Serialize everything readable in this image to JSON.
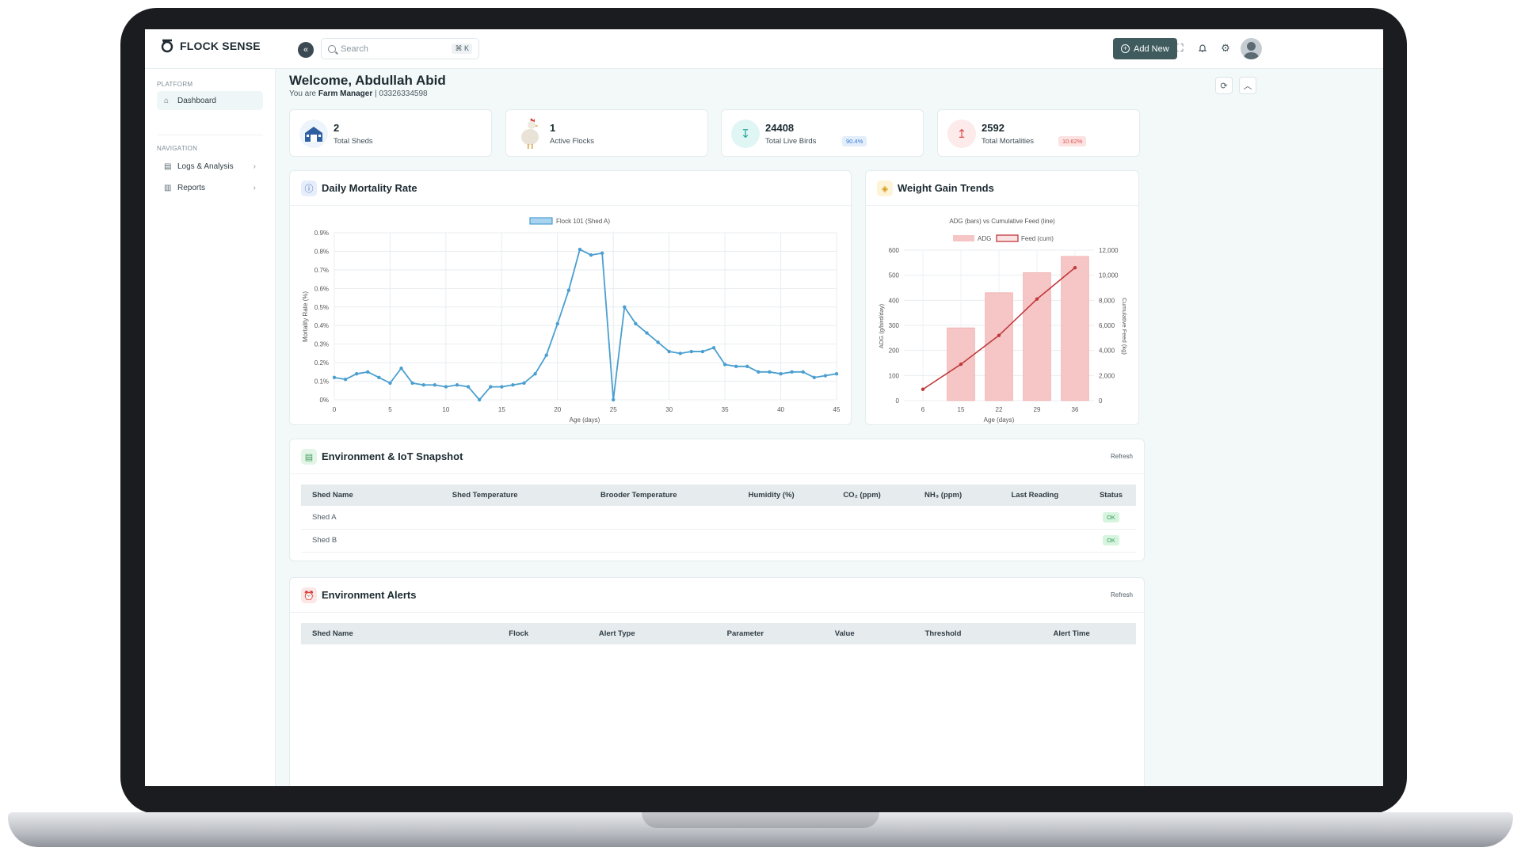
{
  "app": {
    "logo_text": "FLOCK SENSE",
    "brand_color": "#3f5b5e"
  },
  "topbar": {
    "search_placeholder": "Search",
    "shortcut": "⌘ K",
    "add_new": "Add New",
    "icons": [
      "fullscreen-icon",
      "bell-icon",
      "gear-icon",
      "avatar"
    ]
  },
  "sidebar": {
    "platform_label": "PLATFORM",
    "nav_label": "NAVIGATION",
    "items": [
      {
        "label": "Dashboard",
        "icon": "home-icon",
        "active": true
      },
      {
        "label": "Logs & Analysis",
        "icon": "logs-icon",
        "expandable": true
      },
      {
        "label": "Reports",
        "icon": "reports-icon",
        "expandable": true
      }
    ]
  },
  "header": {
    "welcome": "Welcome, Abdullah Abid",
    "role_prefix": "You are",
    "role": "Farm Manager",
    "phone_sep": "| 03326334598"
  },
  "stats": [
    {
      "value": "2",
      "label": "Total Sheds",
      "icon": "barn-icon"
    },
    {
      "value": "1",
      "label": "Active Flocks",
      "icon": "chicken-icon"
    },
    {
      "value": "24408",
      "label": "Total Live Birds",
      "icon": "arrow-down-icon",
      "badge": "90.4%",
      "badge_color": "#3a7bd5"
    },
    {
      "value": "2592",
      "label": "Total Mortalities",
      "icon": "arrow-up-icon",
      "badge": "10.62%",
      "badge_color": "#d9534f"
    }
  ],
  "mortality_card": {
    "title": "Daily Mortality Rate"
  },
  "weight_card": {
    "title": "Weight Gain Trends"
  },
  "chart_data": [
    {
      "type": "line",
      "title": "",
      "xlabel": "Age (days)",
      "ylabel": "Mortality Rate (%)",
      "xlim": [
        0,
        45
      ],
      "ylim": [
        0,
        0.9
      ],
      "xticks": [
        "0",
        "5",
        "10",
        "15",
        "20",
        "25",
        "30",
        "35",
        "40",
        "45"
      ],
      "yticks": [
        "0%",
        "0.1%",
        "0.2%",
        "0.3%",
        "0.4%",
        "0.5%",
        "0.6%",
        "0.7%",
        "0.8%",
        "0.9%"
      ],
      "legend": "top-center",
      "grid": true,
      "series": [
        {
          "name": "Flock 101 (Shed A)",
          "color": "#4a9fd0",
          "x": [
            0,
            1,
            2,
            3,
            4,
            5,
            6,
            7,
            8,
            9,
            10,
            11,
            12,
            13,
            14,
            15,
            16,
            17,
            18,
            19,
            20,
            21,
            22,
            23,
            24,
            25,
            26,
            27,
            28,
            29,
            30,
            31,
            32,
            33,
            34,
            35,
            36,
            37,
            38,
            39,
            40,
            41,
            42,
            43,
            44,
            45
          ],
          "values": [
            0.12,
            0.11,
            0.14,
            0.15,
            0.12,
            0.09,
            0.17,
            0.09,
            0.08,
            0.08,
            0.07,
            0.08,
            0.07,
            0.0,
            0.07,
            0.07,
            0.08,
            0.09,
            0.14,
            0.24,
            0.41,
            0.59,
            0.81,
            0.78,
            0.79,
            0.0,
            0.5,
            0.41,
            0.36,
            0.31,
            0.26,
            0.25,
            0.26,
            0.26,
            0.28,
            0.19,
            0.18,
            0.18,
            0.15,
            0.15,
            0.14,
            0.15,
            0.15,
            0.12,
            0.13,
            0.14
          ]
        }
      ]
    },
    {
      "type": "bar",
      "title": "ADG (bars) vs Cumulative Feed (line)",
      "xlabel": "Age (days)",
      "ylabel": "ADG (g/bird/day)",
      "y2label": "Cumulative Feed (kg)",
      "categories": [
        "6",
        "15",
        "22",
        "29",
        "36"
      ],
      "ylim": [
        0,
        600
      ],
      "y2lim": [
        0,
        12000
      ],
      "yticks": [
        "0",
        "100",
        "200",
        "300",
        "400",
        "500",
        "600"
      ],
      "y2ticks": [
        "0",
        "2,000",
        "4,000",
        "6,000",
        "8,000",
        "10,000",
        "12,000"
      ],
      "legend": "top-center",
      "series": [
        {
          "name": "ADG",
          "type": "bar",
          "color": "#f6c6c6",
          "values": [
            null,
            290,
            430,
            510,
            575
          ]
        },
        {
          "name": "Feed (cum)",
          "type": "line",
          "color": "#c0393b",
          "values": [
            900,
            2900,
            5200,
            8100,
            10600
          ]
        }
      ]
    }
  ],
  "env_card": {
    "title": "Environment & IoT Snapshot",
    "refresh": "Refresh",
    "columns": [
      "Shed Name",
      "Shed Temperature",
      "Brooder Temperature",
      "Humidity (%)",
      "CO₂ (ppm)",
      "NH₃ (ppm)",
      "Last Reading",
      "Status"
    ],
    "rows": [
      {
        "name": "Shed A",
        "status": "OK"
      },
      {
        "name": "Shed B",
        "status": "OK"
      }
    ]
  },
  "alerts_card": {
    "title": "Environment Alerts",
    "refresh": "Refresh",
    "columns": [
      "Shed Name",
      "Flock",
      "Alert Type",
      "Parameter",
      "Value",
      "Threshold",
      "Alert Time"
    ]
  }
}
